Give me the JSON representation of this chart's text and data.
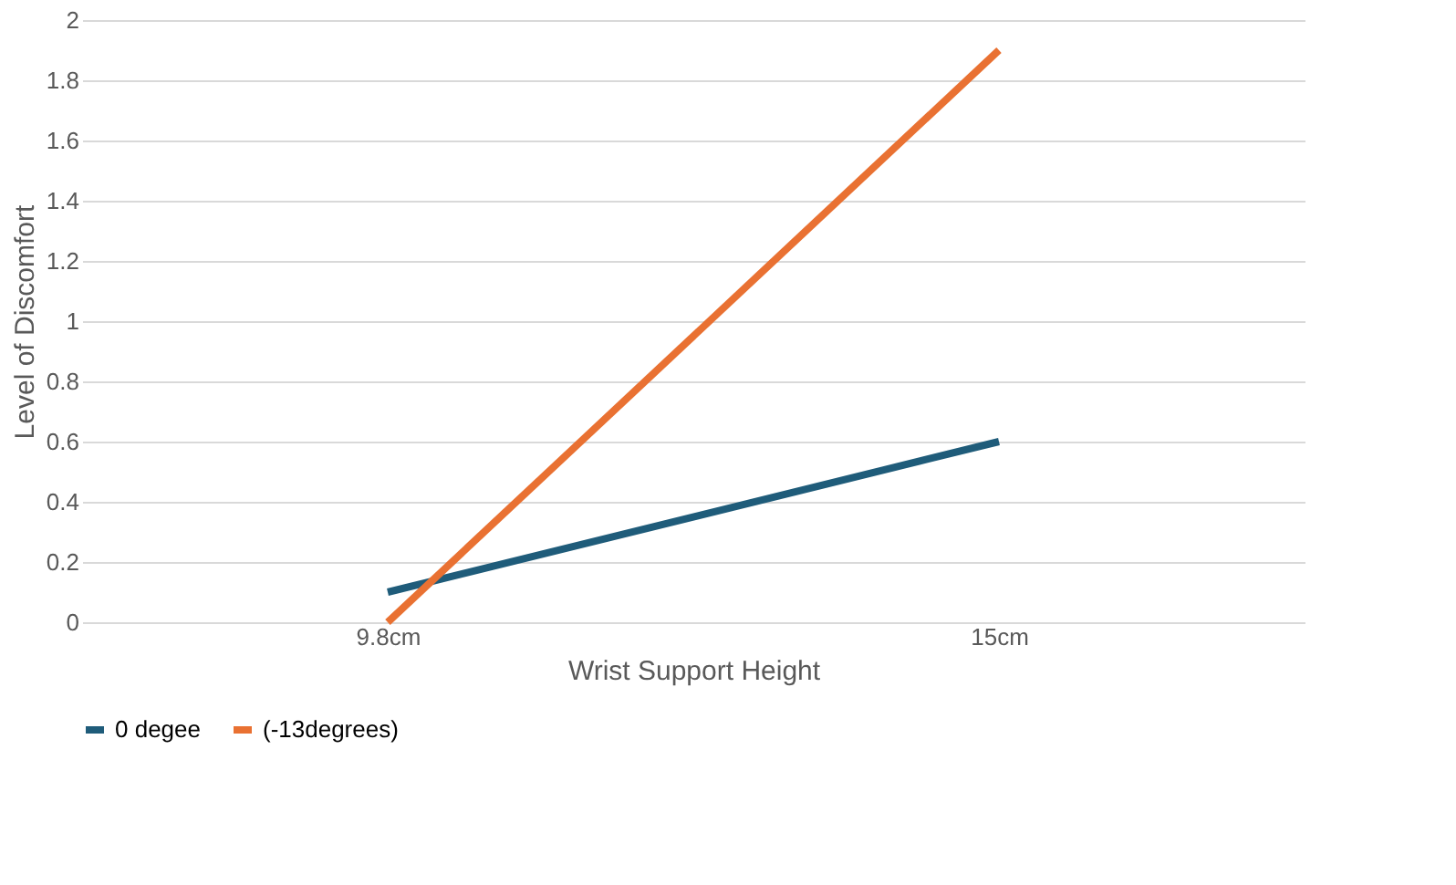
{
  "chart_data": {
    "type": "line",
    "xlabel": "Wrist Support Height",
    "ylabel": "Level of Discomfort",
    "categories": [
      "9.8cm",
      "15cm"
    ],
    "series": [
      {
        "name": "0 degee",
        "color": "#1f5c7a",
        "values": [
          0.1,
          0.6
        ]
      },
      {
        "name": "(-13degrees)",
        "color": "#e97132",
        "values": [
          0,
          1.9
        ]
      }
    ],
    "ylim": [
      0,
      2
    ],
    "yticks": [
      0,
      0.2,
      0.4,
      0.6,
      0.8,
      1,
      1.2,
      1.4,
      1.6,
      1.8,
      2
    ],
    "grid": "y",
    "legend": "bottom",
    "marker": "none",
    "line_style": "solid"
  }
}
